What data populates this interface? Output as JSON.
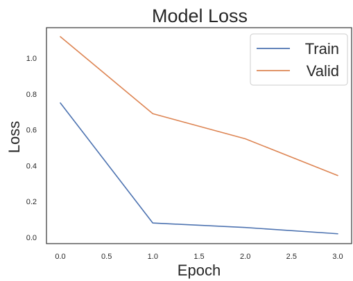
{
  "chart_data": {
    "type": "line",
    "title": "Model Loss",
    "xlabel": "Epoch",
    "ylabel": "Loss",
    "x": [
      0,
      1,
      2,
      3
    ],
    "xlim": [
      -0.15,
      3.15
    ],
    "ylim": [
      -0.035,
      1.17
    ],
    "x_ticks": [
      0.0,
      0.5,
      1.0,
      1.5,
      2.0,
      2.5,
      3.0
    ],
    "x_tick_labels": [
      "0.0",
      "0.5",
      "1.0",
      "1.5",
      "2.0",
      "2.5",
      "3.0"
    ],
    "y_ticks": [
      0.0,
      0.2,
      0.4,
      0.6,
      0.8,
      1.0
    ],
    "y_tick_labels": [
      "0.0",
      "0.2",
      "0.4",
      "0.6",
      "0.8",
      "1.0"
    ],
    "grid": false,
    "legend_position": "top-right",
    "series": [
      {
        "name": "Train",
        "color": "#4c72b0",
        "values": [
          0.75,
          0.08,
          0.055,
          0.02
        ]
      },
      {
        "name": "Valid",
        "color": "#dd8452",
        "values": [
          1.12,
          0.69,
          0.55,
          0.345
        ]
      }
    ]
  }
}
